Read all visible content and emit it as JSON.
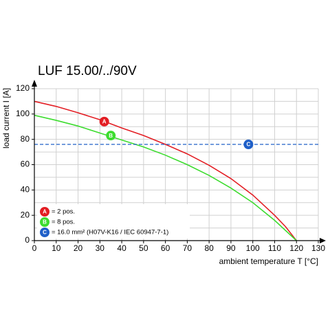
{
  "chart_data": {
    "type": "line",
    "title": "LUF 15.00/../90V",
    "x_label": "ambient temperature T [°C]",
    "y_label": "load current I [A]",
    "x": [
      0,
      10,
      20,
      30,
      40,
      50,
      60,
      70,
      80,
      90,
      100,
      110,
      115,
      120
    ],
    "series": [
      {
        "name": "= 2 pos.",
        "badge": "A",
        "color": "#e31e24",
        "values": [
          110,
          106,
          101,
          95.5,
          89,
          83,
          76,
          68.5,
          59.5,
          49,
          36,
          20,
          11,
          0
        ],
        "marker": {
          "x": 32,
          "y": 94
        }
      },
      {
        "name": "= 8 pos.",
        "badge": "B",
        "color": "#3ddc2f",
        "values": [
          99,
          95,
          90.5,
          85,
          79.5,
          74,
          67.5,
          60,
          51.5,
          41.5,
          30,
          16,
          8,
          0
        ],
        "marker": {
          "x": 35,
          "y": 83
        }
      }
    ],
    "reference_line": {
      "name": "= 16.0 mm² (H07V-K16 / IEC 60947-7-1)",
      "badge": "C",
      "color": "#1f5fc8",
      "value": 76,
      "marker": {
        "x": 98,
        "y": 76
      }
    },
    "xlim": [
      0,
      130
    ],
    "ylim": [
      0,
      120
    ],
    "xticks": [
      0,
      10,
      20,
      30,
      40,
      50,
      60,
      70,
      80,
      90,
      100,
      110,
      120,
      130
    ],
    "yticks": [
      0,
      20,
      40,
      60,
      80,
      100,
      120
    ],
    "y_minor_grid": [
      10,
      30,
      50,
      70,
      90,
      110
    ],
    "grid": true
  }
}
